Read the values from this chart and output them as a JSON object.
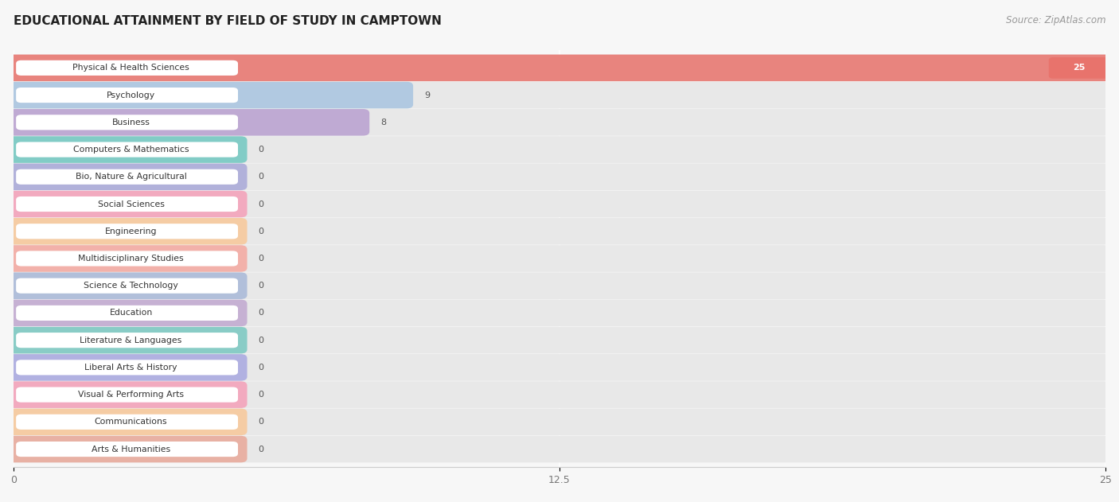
{
  "title": "EDUCATIONAL ATTAINMENT BY FIELD OF STUDY IN CAMPTOWN",
  "source": "Source: ZipAtlas.com",
  "categories": [
    "Physical & Health Sciences",
    "Psychology",
    "Business",
    "Computers & Mathematics",
    "Bio, Nature & Agricultural",
    "Social Sciences",
    "Engineering",
    "Multidisciplinary Studies",
    "Science & Technology",
    "Education",
    "Literature & Languages",
    "Liberal Arts & History",
    "Visual & Performing Arts",
    "Communications",
    "Arts & Humanities"
  ],
  "values": [
    25,
    9,
    8,
    0,
    0,
    0,
    0,
    0,
    0,
    0,
    0,
    0,
    0,
    0,
    0
  ],
  "bar_colors": [
    "#E8736C",
    "#A8C4E0",
    "#B8A0D0",
    "#70C8C0",
    "#A8A8D8",
    "#F4A0B8",
    "#F8C898",
    "#F4A8A0",
    "#A8B8D8",
    "#C0A8D0",
    "#78C8C0",
    "#A8A8E0",
    "#F4A0B8",
    "#F8C898",
    "#E8A898"
  ],
  "xlim": [
    0,
    25
  ],
  "xticks": [
    0,
    12.5,
    25
  ],
  "background_color": "#f7f7f7",
  "bar_bg_color": "#e8e8e8",
  "title_fontsize": 11,
  "source_fontsize": 8.5
}
